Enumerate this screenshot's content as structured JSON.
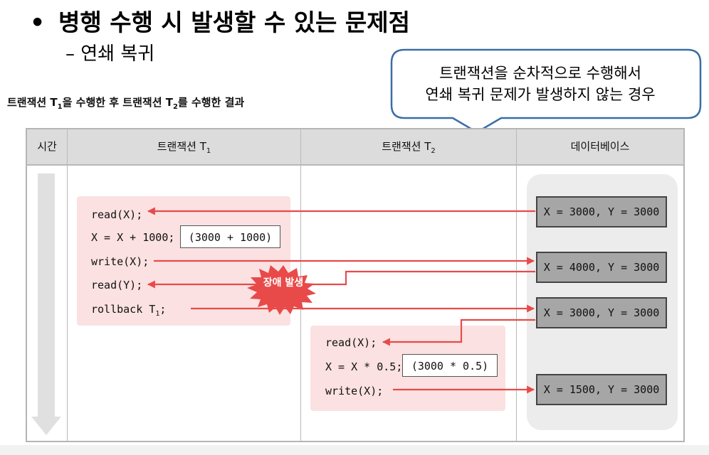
{
  "slide": {
    "bullet": "•",
    "title": "병행 수행 시 발생할 수 있는 문제점",
    "subtitle": "– 연쇄 복귀"
  },
  "callout": {
    "line1": "트랜잭션을 순차적으로 수행해서",
    "line2": "연쇄 복귀 문제가 발생하지 않는 경우"
  },
  "caption": {
    "part1": "트랜잭션 T",
    "sub1": "1",
    "part2": "을 수행한 후 트랜잭션 T",
    "sub2": "2",
    "part3": "를 수행한 결과"
  },
  "table": {
    "col_time": "시간",
    "col_t1": "트랜잭션 T",
    "col_t1_sub": "1",
    "col_t2": "트랜잭션 T",
    "col_t2_sub": "2",
    "col_db": "데이터베이스"
  },
  "t1": {
    "op1": "read(X);",
    "op2": "X = X + 1000;",
    "op2_calc": "(3000 + 1000)",
    "op3": "write(X);",
    "op4": "read(Y);",
    "op5": "rollback T",
    "op5_sub": "1",
    "op5_end": ";"
  },
  "t2": {
    "op1": "read(X);",
    "op2": "X = X * 0.5;",
    "op2_calc": "(3000 * 0.5)",
    "op3": "write(X);"
  },
  "db": {
    "state1": "X = 3000, Y = 3000",
    "state2": "X = 4000, Y = 3000",
    "state3": "X = 3000, Y = 3000",
    "state4": "X = 1500, Y = 3000"
  },
  "failure_label": "장애 발생",
  "colors": {
    "arrow": "#e84a4a",
    "highlight": "#fbe1e1",
    "callout_border": "#3a6ea5",
    "db_box": "#a6a6a6"
  }
}
